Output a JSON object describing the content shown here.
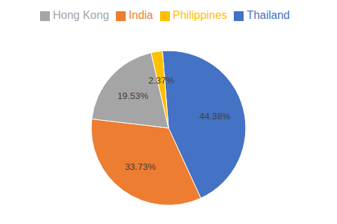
{
  "chart_data": {
    "type": "pie",
    "categories": [
      "Thailand",
      "India",
      "Hong Kong",
      "Philippines"
    ],
    "values": [
      44.38,
      33.73,
      19.53,
      2.37
    ],
    "value_labels": [
      "44.38%",
      "33.73%",
      "19.53%",
      "2.37%"
    ],
    "colors": [
      "#4472C4",
      "#ED7D31",
      "#A5A5A5",
      "#FFC000"
    ],
    "data_labels": true,
    "legend": "top"
  }
}
